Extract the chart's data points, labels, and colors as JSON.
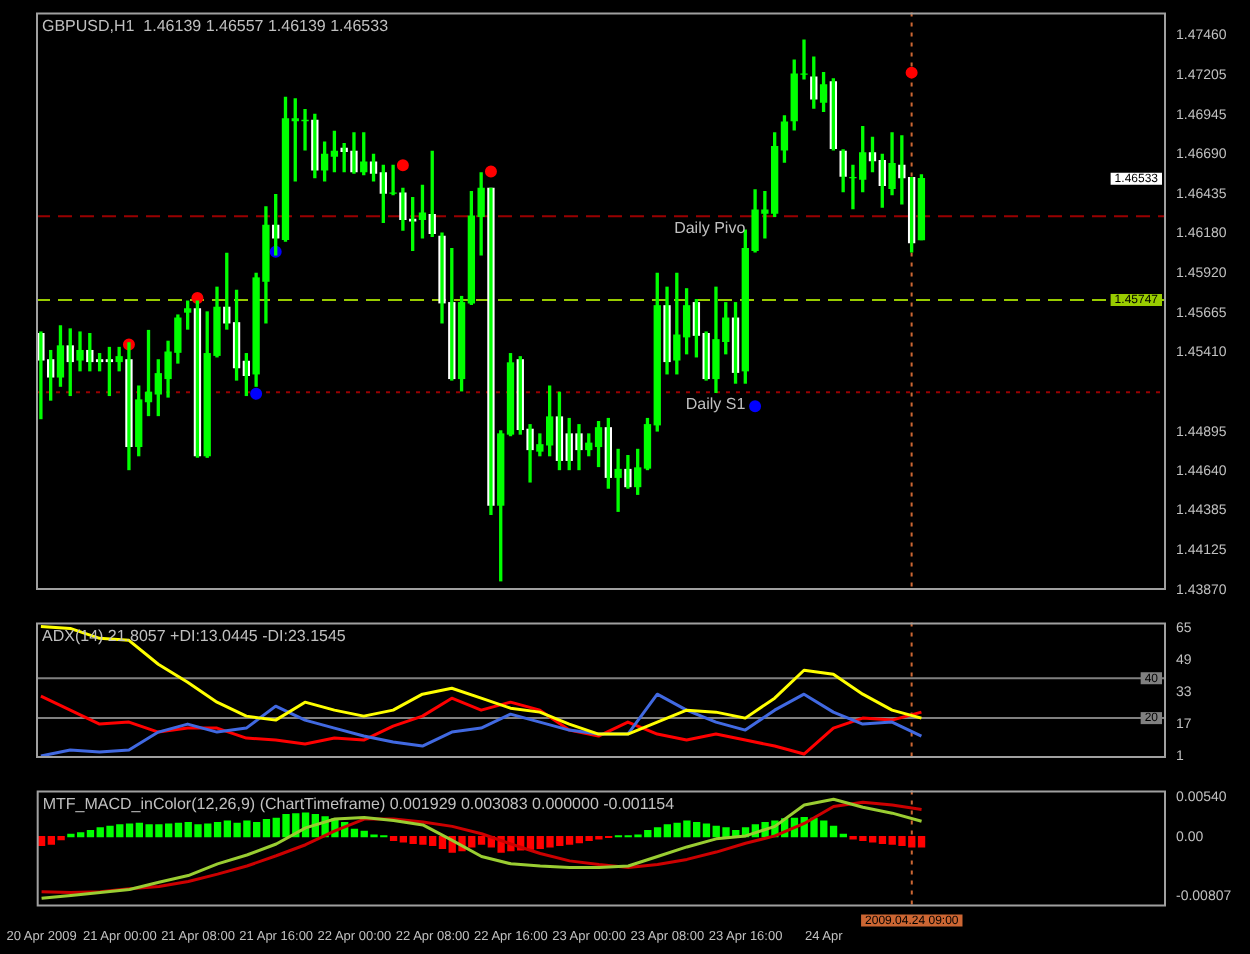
{
  "chart_data": [
    {
      "type": "candlestick",
      "title": "GBPUSD,H1  1.46139 1.46557 1.46139 1.46533",
      "color": "#00ff00",
      "marker": "circle",
      "tick_labels": "y",
      "colors": [
        "#ffffff",
        "#ffffff",
        "#00ff00",
        "#ffffff",
        "#00ff00",
        "#ffffff",
        "#ffffff",
        "#ffffff",
        "#00ff00",
        "#ffffff",
        "#00ff00",
        "#00ff00",
        "#00ff00",
        "#00ff00",
        "#00ff00",
        "#00ff00",
        "#ffffff",
        "#00ff00",
        "#00ff00",
        "#ffffff",
        "#ffffff",
        "#ffffff",
        "#00ff00",
        "#00ff00",
        "#ffffff",
        "#00ff00",
        "#00ff00",
        "#00ff00",
        "#ffffff",
        "#00ff00",
        "#00ff00",
        "#ffffff",
        "#ffffff",
        "#00ff00",
        "#ffffff",
        "#ffffff",
        "#00ff00",
        "#ffffff",
        "#ffffff",
        "#00ff00",
        "#ffffff",
        "#ffffff",
        "#ffffff",
        "#00ff00",
        "#00ff00",
        "#00ff00",
        "#ffffff",
        "#00ff00",
        "#00ff00",
        "#ffffff",
        "#ffffff",
        "#00ff00",
        "#00ff00",
        "#ffffff",
        "#ffffff",
        "#ffffff",
        "#00ff00",
        "#00ff00",
        "#ffffff",
        "#00ff00",
        "#ffffff",
        "#00ff00",
        "#00ff00",
        "#00ff00",
        "#ffffff",
        "#00ff00",
        "#00ff00",
        "#ffffff",
        "#ffffff",
        "#00ff00",
        "#00ff00",
        "#ffffff",
        "#00ff00",
        "#00ff00",
        "#00ff00",
        "#00ff00",
        "#00ff00",
        "#00ff00",
        "#00ff00",
        "#ffffff",
        "#00ff00",
        "#ffffff",
        "#ffffff",
        "#00ff00",
        "#00ff00",
        "#ffffff",
        "#ffffff",
        "#00ff00",
        "#ffffff",
        "#ffffff",
        "#00ff00"
      ],
      "xlim": [
        "2009-04-20T15:30",
        "2009-04-25T11:00"
      ],
      "ylim": [
        1.4387,
        1.4761
      ],
      "yticks": [
        {
          "value": 1.4746,
          "label": "1.47460"
        },
        {
          "value": 1.47205,
          "label": "1.47205"
        },
        {
          "value": 1.46945,
          "label": "1.46945"
        },
        {
          "value": 1.4669,
          "label": "1.46690"
        },
        {
          "value": 1.46435,
          "label": "1.46435"
        },
        {
          "value": 1.4618,
          "label": "1.46180"
        },
        {
          "value": 1.4592,
          "label": "1.45920"
        },
        {
          "value": 1.45665,
          "label": "1.45665"
        },
        {
          "value": 1.4541,
          "label": "1.45410"
        },
        {
          "value": 1.44895,
          "label": "1.44895"
        },
        {
          "value": 1.4464,
          "label": "1.44640"
        },
        {
          "value": 1.44385,
          "label": "1.44385"
        },
        {
          "value": 1.44125,
          "label": "1.44125"
        },
        {
          "value": 1.4387,
          "label": "1.43870"
        }
      ],
      "x": [
        "2009-04-20T16:00",
        "2009-04-20T17:00",
        "2009-04-20T18:00",
        "2009-04-20T19:00",
        "2009-04-20T20:00",
        "2009-04-20T21:00",
        "2009-04-20T22:00",
        "2009-04-20T23:00",
        "2009-04-21T00:00",
        "2009-04-21T01:00",
        "2009-04-21T02:00",
        "2009-04-21T03:00",
        "2009-04-21T04:00",
        "2009-04-21T05:00",
        "2009-04-21T06:00",
        "2009-04-21T07:00",
        "2009-04-21T08:00",
        "2009-04-21T09:00",
        "2009-04-21T10:00",
        "2009-04-21T11:00",
        "2009-04-21T12:00",
        "2009-04-21T13:00",
        "2009-04-21T14:00",
        "2009-04-21T15:00",
        "2009-04-21T16:00",
        "2009-04-21T17:00",
        "2009-04-21T18:00",
        "2009-04-21T19:00",
        "2009-04-21T20:00",
        "2009-04-21T21:00",
        "2009-04-21T22:00",
        "2009-04-21T23:00",
        "2009-04-22T00:00",
        "2009-04-22T01:00",
        "2009-04-22T02:00",
        "2009-04-22T03:00",
        "2009-04-22T04:00",
        "2009-04-22T05:00",
        "2009-04-22T06:00",
        "2009-04-22T07:00",
        "2009-04-22T08:00",
        "2009-04-22T09:00",
        "2009-04-22T10:00",
        "2009-04-22T11:00",
        "2009-04-22T12:00",
        "2009-04-22T13:00",
        "2009-04-22T14:00",
        "2009-04-22T15:00",
        "2009-04-22T16:00",
        "2009-04-22T17:00",
        "2009-04-22T18:00",
        "2009-04-22T19:00",
        "2009-04-22T20:00",
        "2009-04-22T21:00",
        "2009-04-22T22:00",
        "2009-04-22T23:00",
        "2009-04-23T00:00",
        "2009-04-23T01:00",
        "2009-04-23T02:00",
        "2009-04-23T03:00",
        "2009-04-23T04:00",
        "2009-04-23T05:00",
        "2009-04-23T06:00",
        "2009-04-23T07:00",
        "2009-04-23T08:00",
        "2009-04-23T09:00",
        "2009-04-23T10:00",
        "2009-04-23T11:00",
        "2009-04-23T12:00",
        "2009-04-23T13:00",
        "2009-04-23T14:00",
        "2009-04-23T15:00",
        "2009-04-23T16:00",
        "2009-04-23T17:00",
        "2009-04-23T18:00",
        "2009-04-23T19:00",
        "2009-04-23T20:00",
        "2009-04-23T21:00",
        "2009-04-23T22:00",
        "2009-04-23T23:00",
        "2009-04-24T00:00",
        "2009-04-24T01:00",
        "2009-04-24T02:00",
        "2009-04-24T03:00",
        "2009-04-24T04:00",
        "2009-04-24T05:00",
        "2009-04-24T06:00",
        "2009-04-24T07:00",
        "2009-04-24T08:00",
        "2009-04-24T09:00",
        "2009-04-24T10:00"
      ],
      "ohlc": [
        [
          1.4553,
          1.4554,
          1.4498,
          1.4536
        ],
        [
          1.4536,
          1.4542,
          1.451,
          1.4525
        ],
        [
          1.4525,
          1.4558,
          1.4519,
          1.4545
        ],
        [
          1.4545,
          1.4556,
          1.4513,
          1.4535
        ],
        [
          1.4536,
          1.4554,
          1.4529,
          1.4542
        ],
        [
          1.4542,
          1.4553,
          1.4529,
          1.4535
        ],
        [
          1.4536,
          1.454,
          1.4529,
          1.4535
        ],
        [
          1.4536,
          1.4544,
          1.4513,
          1.4535
        ],
        [
          1.4535,
          1.4544,
          1.4529,
          1.4538
        ],
        [
          1.4536,
          1.4547,
          1.4465,
          1.448
        ],
        [
          1.448,
          1.4519,
          1.4474,
          1.451
        ],
        [
          1.4509,
          1.4555,
          1.45,
          1.4515
        ],
        [
          1.4514,
          1.4536,
          1.45,
          1.4527
        ],
        [
          1.4524,
          1.4548,
          1.4512,
          1.4541
        ],
        [
          1.4541,
          1.4565,
          1.4534,
          1.4563
        ],
        [
          1.4567,
          1.4574,
          1.4556,
          1.4569
        ],
        [
          1.4569,
          1.4574,
          1.4473,
          1.4474
        ],
        [
          1.4474,
          1.4567,
          1.4473,
          1.454
        ],
        [
          1.4539,
          1.4583,
          1.4538,
          1.457
        ],
        [
          1.457,
          1.4605,
          1.4556,
          1.456
        ],
        [
          1.456,
          1.4581,
          1.4523,
          1.4531
        ],
        [
          1.4535,
          1.454,
          1.4513,
          1.4526
        ],
        [
          1.4527,
          1.4592,
          1.4519,
          1.4589
        ],
        [
          1.4587,
          1.4635,
          1.456,
          1.4623
        ],
        [
          1.4623,
          1.4643,
          1.4604,
          1.4615
        ],
        [
          1.4614,
          1.4706,
          1.4613,
          1.4692
        ],
        [
          1.4691,
          1.4705,
          1.4652,
          1.4692
        ],
        [
          1.4691,
          1.4698,
          1.4672,
          1.4691
        ],
        [
          1.4691,
          1.4695,
          1.4654,
          1.4659
        ],
        [
          1.4659,
          1.4677,
          1.4652,
          1.4669
        ],
        [
          1.4668,
          1.4684,
          1.4658,
          1.4671
        ],
        [
          1.4673,
          1.4676,
          1.4658,
          1.4671
        ],
        [
          1.4671,
          1.4683,
          1.4657,
          1.4658
        ],
        [
          1.4658,
          1.4683,
          1.4656,
          1.4664
        ],
        [
          1.4664,
          1.4669,
          1.4652,
          1.4657
        ],
        [
          1.4657,
          1.4662,
          1.4625,
          1.4644
        ],
        [
          1.4644,
          1.4662,
          1.4643,
          1.4644
        ],
        [
          1.4644,
          1.4647,
          1.462,
          1.4627
        ],
        [
          1.4627,
          1.4641,
          1.4607,
          1.4626
        ],
        [
          1.4627,
          1.4649,
          1.4615,
          1.4631
        ],
        [
          1.463,
          1.4671,
          1.4616,
          1.4618
        ],
        [
          1.4616,
          1.4618,
          1.456,
          1.4573
        ],
        [
          1.4573,
          1.4608,
          1.4523,
          1.4524
        ],
        [
          1.4524,
          1.4577,
          1.4516,
          1.4573
        ],
        [
          1.4573,
          1.4645,
          1.4572,
          1.4629
        ],
        [
          1.4629,
          1.4657,
          1.4604,
          1.4647
        ],
        [
          1.4647,
          1.4647,
          1.4436,
          1.4442
        ],
        [
          1.4442,
          1.449,
          1.4393,
          1.4488
        ],
        [
          1.4488,
          1.454,
          1.4487,
          1.4534
        ],
        [
          1.4536,
          1.4538,
          1.4488,
          1.4491
        ],
        [
          1.4491,
          1.4494,
          1.4457,
          1.4478
        ],
        [
          1.4477,
          1.4488,
          1.4474,
          1.4481
        ],
        [
          1.4481,
          1.4519,
          1.4474,
          1.4499
        ],
        [
          1.4499,
          1.4515,
          1.4465,
          1.4471
        ],
        [
          1.4488,
          1.4498,
          1.4465,
          1.4471
        ],
        [
          1.4488,
          1.4494,
          1.4465,
          1.4478
        ],
        [
          1.4478,
          1.4488,
          1.4474,
          1.4482
        ],
        [
          1.448,
          1.4496,
          1.4467,
          1.4492
        ],
        [
          1.4492,
          1.4498,
          1.4453,
          1.446
        ],
        [
          1.446,
          1.4478,
          1.4438,
          1.4465
        ],
        [
          1.4465,
          1.4474,
          1.4453,
          1.4454
        ],
        [
          1.4454,
          1.4478,
          1.4449,
          1.4466
        ],
        [
          1.4466,
          1.4498,
          1.4465,
          1.4494
        ],
        [
          1.4494,
          1.4592,
          1.449,
          1.4571
        ],
        [
          1.4571,
          1.4583,
          1.4527,
          1.4535
        ],
        [
          1.4536,
          1.4592,
          1.4527,
          1.4552
        ],
        [
          1.4551,
          1.4582,
          1.454,
          1.4571
        ],
        [
          1.4573,
          1.4575,
          1.4538,
          1.4552
        ],
        [
          1.4553,
          1.4554,
          1.4523,
          1.4524
        ],
        [
          1.4524,
          1.4583,
          1.4515,
          1.4549
        ],
        [
          1.4548,
          1.4573,
          1.454,
          1.4563
        ],
        [
          1.4563,
          1.4573,
          1.4521,
          1.4528
        ],
        [
          1.4529,
          1.462,
          1.4521,
          1.4608
        ],
        [
          1.4607,
          1.4646,
          1.4606,
          1.4633
        ],
        [
          1.4631,
          1.4645,
          1.4615,
          1.4633
        ],
        [
          1.4631,
          1.4683,
          1.4629,
          1.4674
        ],
        [
          1.4672,
          1.4694,
          1.4664,
          1.469
        ],
        [
          1.4691,
          1.473,
          1.4685,
          1.4721
        ],
        [
          1.4721,
          1.4743,
          1.4718,
          1.4721
        ],
        [
          1.4719,
          1.4732,
          1.4699,
          1.4705
        ],
        [
          1.4703,
          1.4722,
          1.4697,
          1.4714
        ],
        [
          1.4716,
          1.4718,
          1.4672,
          1.4673
        ],
        [
          1.4671,
          1.4672,
          1.4645,
          1.4655
        ],
        [
          1.4654,
          1.4662,
          1.4634,
          1.4654
        ],
        [
          1.4653,
          1.4687,
          1.4645,
          1.467
        ],
        [
          1.467,
          1.468,
          1.4658,
          1.4665
        ],
        [
          1.4665,
          1.4669,
          1.4635,
          1.4649
        ],
        [
          1.4647,
          1.4683,
          1.4643,
          1.4663
        ],
        [
          1.4662,
          1.4681,
          1.4637,
          1.4654
        ],
        [
          1.4654,
          1.4654,
          1.4606,
          1.4612
        ],
        [
          1.46139,
          1.46557,
          1.46139,
          1.46533
        ]
      ],
      "series": [
        {
          "type": "scatter",
          "color": "#ff0000",
          "x": [
            "2009-04-21T01:00",
            "2009-04-21T08:00",
            "2009-04-22T05:00",
            "2009-04-22T14:00",
            "2009-04-24T09:00"
          ],
          "values": [
            1.4546,
            1.4576,
            1.4662,
            1.4658,
            1.4722
          ]
        },
        {
          "type": "scatter",
          "color": "#0000ff",
          "x": [
            "2009-04-21T14:00",
            "2009-04-21T16:00",
            "2009-04-23T17:00"
          ],
          "values": [
            1.4514,
            1.4606,
            1.4506
          ]
        }
      ],
      "ref_lines": [
        {
          "axis": "y",
          "value": 1.4629,
          "color": "#990000",
          "line_style": "dashed"
        },
        {
          "axis": "y",
          "value": 1.4515,
          "color": "#990000",
          "line_style": "dotted"
        },
        {
          "axis": "y",
          "value": 1.45747,
          "label": "1.45747",
          "color": "#99cc00",
          "line_style": "dashed"
        },
        {
          "axis": "x",
          "value": "2009-04-24T09:00",
          "color": "#cc6633",
          "line_style": "dotted"
        }
      ],
      "annotations": [
        {
          "text": "Daily Pivo",
          "x": "2009-04-23T16:00",
          "y": 1.4629
        },
        {
          "text": "Daily S1",
          "x": "2009-04-23T16:00",
          "y": 1.4515
        },
        "1.46533"
      ]
    },
    {
      "type": "line",
      "title": "ADX(14) 21.8057 +DI:13.0445 -DI:23.1545",
      "tick_labels": "y",
      "xlim": [
        "2009-04-20T15:30",
        "2009-04-25T11:00"
      ],
      "ylim": [
        0,
        68
      ],
      "yticks": [
        65,
        49,
        33,
        17,
        1
      ],
      "x": [
        "2009-04-20T16:00",
        "2009-04-20T19:00",
        "2009-04-20T22:00",
        "2009-04-21T01:00",
        "2009-04-21T04:00",
        "2009-04-21T07:00",
        "2009-04-21T10:00",
        "2009-04-21T13:00",
        "2009-04-21T16:00",
        "2009-04-21T19:00",
        "2009-04-21T22:00",
        "2009-04-22T01:00",
        "2009-04-22T04:00",
        "2009-04-22T07:00",
        "2009-04-22T10:00",
        "2009-04-22T13:00",
        "2009-04-22T16:00",
        "2009-04-22T19:00",
        "2009-04-22T22:00",
        "2009-04-23T01:00",
        "2009-04-23T04:00",
        "2009-04-23T07:00",
        "2009-04-23T10:00",
        "2009-04-23T13:00",
        "2009-04-23T16:00",
        "2009-04-23T19:00",
        "2009-04-23T22:00",
        "2009-04-24T01:00",
        "2009-04-24T04:00",
        "2009-04-24T07:00",
        "2009-04-24T10:00"
      ],
      "series": [
        {
          "color": "#ffff00",
          "values": [
            66,
            65,
            60,
            59,
            47,
            38,
            28,
            21,
            19,
            28,
            24,
            21,
            24,
            32,
            35,
            30,
            25,
            23,
            17,
            12,
            12,
            18,
            24,
            23,
            20,
            30,
            44,
            42,
            32,
            24,
            20
          ]
        },
        {
          "color": "#4169e1",
          "values": [
            1,
            4,
            3,
            4,
            13,
            17,
            13,
            15,
            26,
            19,
            15,
            11,
            8,
            6,
            13,
            15,
            22,
            18,
            14,
            12,
            12,
            32,
            24,
            18,
            14,
            24,
            32,
            23,
            17,
            18,
            11
          ]
        },
        {
          "color": "#ff0000",
          "values": [
            31,
            24,
            17,
            18,
            13,
            15,
            15,
            10,
            9,
            7,
            10,
            9,
            16,
            21,
            30,
            24,
            28,
            24,
            14,
            11,
            18,
            12,
            9,
            12,
            9,
            6,
            2,
            15,
            20,
            19,
            23
          ]
        }
      ],
      "ref_lines": [
        {
          "axis": "y",
          "value": 40,
          "label": "40",
          "color": "#808080"
        },
        {
          "axis": "y",
          "value": 20,
          "label": "20",
          "color": "#808080"
        },
        {
          "axis": "x",
          "value": "2009-04-24T09:00",
          "color": "#cc6633",
          "line_style": "dotted"
        }
      ]
    },
    {
      "type": "bar",
      "title": "MTF_MACD_inColor(12,26,9) (ChartTimeframe) 0.001929 0.003083 0.000000 -0.001154",
      "xlim": [
        "2009-04-20T15:30",
        "2009-04-25T11:00"
      ],
      "xticks": [
        {
          "value": "2009-04-20T16:00",
          "label": "20 Apr 2009"
        },
        {
          "value": "2009-04-21T00:00",
          "label": "21 Apr 00:00"
        },
        {
          "value": "2009-04-21T08:00",
          "label": "21 Apr 08:00"
        },
        {
          "value": "2009-04-21T16:00",
          "label": "21 Apr 16:00"
        },
        {
          "value": "2009-04-22T00:00",
          "label": "22 Apr 00:00"
        },
        {
          "value": "2009-04-22T08:00",
          "label": "22 Apr 08:00"
        },
        {
          "value": "2009-04-22T16:00",
          "label": "22 Apr 16:00"
        },
        {
          "value": "2009-04-23T00:00",
          "label": "23 Apr 00:00"
        },
        {
          "value": "2009-04-23T08:00",
          "label": "23 Apr 08:00"
        },
        {
          "value": "2009-04-23T16:00",
          "label": "23 Apr 16:00"
        },
        {
          "value": "2009-04-24T00:00",
          "label": "24 Apr"
        }
      ],
      "ylim": [
        -0.0095,
        0.0063
      ],
      "yticks": [
        {
          "value": 0.0054,
          "label": "0.00540"
        },
        {
          "value": 0,
          "label": "0.00"
        },
        {
          "value": -0.00807,
          "label": "-0.00807"
        }
      ],
      "x": [
        "2009-04-20T16:00",
        "2009-04-20T17:00",
        "2009-04-20T18:00",
        "2009-04-20T19:00",
        "2009-04-20T20:00",
        "2009-04-20T21:00",
        "2009-04-20T22:00",
        "2009-04-20T23:00",
        "2009-04-21T00:00",
        "2009-04-21T01:00",
        "2009-04-21T02:00",
        "2009-04-21T03:00",
        "2009-04-21T04:00",
        "2009-04-21T05:00",
        "2009-04-21T06:00",
        "2009-04-21T07:00",
        "2009-04-21T08:00",
        "2009-04-21T09:00",
        "2009-04-21T10:00",
        "2009-04-21T11:00",
        "2009-04-21T12:00",
        "2009-04-21T13:00",
        "2009-04-21T14:00",
        "2009-04-21T15:00",
        "2009-04-21T16:00",
        "2009-04-21T17:00",
        "2009-04-21T18:00",
        "2009-04-21T19:00",
        "2009-04-21T20:00",
        "2009-04-21T21:00",
        "2009-04-21T22:00",
        "2009-04-21T23:00",
        "2009-04-22T00:00",
        "2009-04-22T01:00",
        "2009-04-22T02:00",
        "2009-04-22T03:00",
        "2009-04-22T04:00",
        "2009-04-22T05:00",
        "2009-04-22T06:00",
        "2009-04-22T07:00",
        "2009-04-22T08:00",
        "2009-04-22T09:00",
        "2009-04-22T10:00",
        "2009-04-22T11:00",
        "2009-04-22T12:00",
        "2009-04-22T13:00",
        "2009-04-22T14:00",
        "2009-04-22T15:00",
        "2009-04-22T16:00",
        "2009-04-22T17:00",
        "2009-04-22T18:00",
        "2009-04-22T19:00",
        "2009-04-22T20:00",
        "2009-04-22T21:00",
        "2009-04-22T22:00",
        "2009-04-22T23:00",
        "2009-04-23T00:00",
        "2009-04-23T01:00",
        "2009-04-23T02:00",
        "2009-04-23T03:00",
        "2009-04-23T04:00",
        "2009-04-23T05:00",
        "2009-04-23T06:00",
        "2009-04-23T07:00",
        "2009-04-23T08:00",
        "2009-04-23T09:00",
        "2009-04-23T10:00",
        "2009-04-23T11:00",
        "2009-04-23T12:00",
        "2009-04-23T13:00",
        "2009-04-23T14:00",
        "2009-04-23T15:00",
        "2009-04-23T16:00",
        "2009-04-23T17:00",
        "2009-04-23T18:00",
        "2009-04-23T19:00",
        "2009-04-23T20:00",
        "2009-04-23T21:00",
        "2009-04-23T22:00",
        "2009-04-23T23:00",
        "2009-04-24T00:00",
        "2009-04-24T01:00",
        "2009-04-24T02:00",
        "2009-04-24T03:00",
        "2009-04-24T04:00",
        "2009-04-24T05:00",
        "2009-04-24T06:00",
        "2009-04-24T07:00",
        "2009-04-24T08:00",
        "2009-04-24T09:00",
        "2009-04-24T10:00"
      ],
      "series": [
        {
          "values": [
            -0.0012,
            -0.001,
            -0.0004,
            0.0003,
            0.0005,
            0.0008,
            0.0012,
            0.0014,
            0.0016,
            0.0017,
            0.0018,
            0.0016,
            0.0016,
            0.0017,
            0.0018,
            0.0019,
            0.0016,
            0.0017,
            0.0019,
            0.0021,
            0.0018,
            0.0021,
            0.0019,
            0.0023,
            0.0025,
            0.003,
            0.0031,
            0.0032,
            0.003,
            0.0027,
            0.0024,
            0.0019,
            0.001,
            0.0007,
            0.0002,
            0.0001,
            -0.0005,
            -0.0007,
            -0.0009,
            -0.001,
            -0.0012,
            -0.0016,
            -0.0021,
            -0.0019,
            -0.0014,
            -0.001,
            -0.0014,
            -0.0021,
            -0.0019,
            -0.0018,
            -0.0017,
            -0.0016,
            -0.0014,
            -0.0012,
            -0.001,
            -0.0008,
            -0.0005,
            -0.0003,
            -0.0001,
            0.0001,
            0.0001,
            0.0002,
            0.0008,
            0.0012,
            0.0016,
            0.0018,
            0.0021,
            0.0019,
            0.0017,
            0.0014,
            0.0012,
            0.0008,
            0.0012,
            0.0016,
            0.0019,
            0.0021,
            0.0024,
            0.0025,
            0.0026,
            0.0025,
            0.0021,
            0.0014,
            0.0003,
            -0.0003,
            -0.0005,
            -0.0007,
            -0.0009,
            -0.001,
            -0.0012,
            -0.0014,
            -0.0014
          ],
          "colors": [
            "#ff0000",
            "#ff0000",
            "#ff0000",
            "#00ff00",
            "#00ff00",
            "#00ff00",
            "#00ff00",
            "#00ff00",
            "#00ff00",
            "#00ff00",
            "#00ff00",
            "#00ff00",
            "#00ff00",
            "#00ff00",
            "#00ff00",
            "#00ff00",
            "#00ff00",
            "#00ff00",
            "#00ff00",
            "#00ff00",
            "#00ff00",
            "#00ff00",
            "#00ff00",
            "#00ff00",
            "#00ff00",
            "#00ff00",
            "#00ff00",
            "#00ff00",
            "#00ff00",
            "#00ff00",
            "#00ff00",
            "#00ff00",
            "#00ff00",
            "#00ff00",
            "#00ff00",
            "#00ff00",
            "#ff0000",
            "#ff0000",
            "#ff0000",
            "#ff0000",
            "#ff0000",
            "#ff0000",
            "#ff0000",
            "#ff0000",
            "#ff0000",
            "#ff0000",
            "#ff0000",
            "#ff0000",
            "#ff0000",
            "#ff0000",
            "#ff0000",
            "#ff0000",
            "#ff0000",
            "#ff0000",
            "#ff0000",
            "#ff0000",
            "#ff0000",
            "#ff0000",
            "#ff0000",
            "#00ff00",
            "#00ff00",
            "#00ff00",
            "#00ff00",
            "#00ff00",
            "#00ff00",
            "#00ff00",
            "#00ff00",
            "#00ff00",
            "#00ff00",
            "#00ff00",
            "#00ff00",
            "#00ff00",
            "#00ff00",
            "#00ff00",
            "#00ff00",
            "#00ff00",
            "#00ff00",
            "#00ff00",
            "#00ff00",
            "#00ff00",
            "#00ff00",
            "#00ff00",
            "#00ff00",
            "#ff0000",
            "#ff0000",
            "#ff0000",
            "#ff0000",
            "#ff0000",
            "#ff0000",
            "#ff0000",
            "#ff0000"
          ]
        },
        {
          "type": "line",
          "color": "#9acd32",
          "x": [
            "2009-04-20T16:00",
            "2009-04-20T19:00",
            "2009-04-20T22:00",
            "2009-04-21T01:00",
            "2009-04-21T04:00",
            "2009-04-21T07:00",
            "2009-04-21T10:00",
            "2009-04-21T13:00",
            "2009-04-21T16:00",
            "2009-04-21T19:00",
            "2009-04-21T22:00",
            "2009-04-22T01:00",
            "2009-04-22T04:00",
            "2009-04-22T07:00",
            "2009-04-22T10:00",
            "2009-04-22T13:00",
            "2009-04-22T16:00",
            "2009-04-22T19:00",
            "2009-04-22T22:00",
            "2009-04-23T01:00",
            "2009-04-23T04:00",
            "2009-04-23T07:00",
            "2009-04-23T10:00",
            "2009-04-23T13:00",
            "2009-04-23T16:00",
            "2009-04-23T19:00",
            "2009-04-23T22:00",
            "2009-04-24T01:00",
            "2009-04-24T04:00",
            "2009-04-24T07:00",
            "2009-04-24T10:00"
          ],
          "values": [
            -0.0084,
            -0.008,
            -0.0076,
            -0.0072,
            -0.0062,
            -0.0053,
            -0.0037,
            -0.0025,
            -0.001,
            0.0012,
            0.0024,
            0.0026,
            0.0022,
            0.0016,
            -0.0005,
            -0.0027,
            -0.0037,
            -0.004,
            -0.0042,
            -0.0042,
            -0.004,
            -0.0027,
            -0.0014,
            -0.0003,
            0.0001,
            0.0014,
            0.0043,
            0.0051,
            0.004,
            0.0032,
            0.0021
          ]
        },
        {
          "type": "line",
          "color": "#cc0000",
          "x": [
            "2009-04-20T16:00",
            "2009-04-20T19:00",
            "2009-04-20T22:00",
            "2009-04-21T01:00",
            "2009-04-21T04:00",
            "2009-04-21T07:00",
            "2009-04-21T10:00",
            "2009-04-21T13:00",
            "2009-04-21T16:00",
            "2009-04-21T19:00",
            "2009-04-21T22:00",
            "2009-04-22T01:00",
            "2009-04-22T04:00",
            "2009-04-22T07:00",
            "2009-04-22T10:00",
            "2009-04-22T13:00",
            "2009-04-22T16:00",
            "2009-04-22T19:00",
            "2009-04-22T22:00",
            "2009-04-23T01:00",
            "2009-04-23T04:00",
            "2009-04-23T07:00",
            "2009-04-23T10:00",
            "2009-04-23T13:00",
            "2009-04-23T16:00",
            "2009-04-23T19:00",
            "2009-04-23T22:00",
            "2009-04-24T01:00",
            "2009-04-24T04:00",
            "2009-04-24T07:00",
            "2009-04-24T10:00"
          ],
          "values": [
            -0.0075,
            -0.0076,
            -0.0075,
            -0.0071,
            -0.0068,
            -0.0061,
            -0.0051,
            -0.004,
            -0.0026,
            -0.0011,
            0.0008,
            0.0024,
            0.0024,
            0.002,
            0.0014,
            0.0004,
            -0.001,
            -0.0023,
            -0.0033,
            -0.0038,
            -0.0042,
            -0.0038,
            -0.0031,
            -0.0021,
            -0.0009,
            0.0001,
            0.0018,
            0.0041,
            0.0047,
            0.0043,
            0.0037
          ]
        }
      ],
      "ref_lines": [
        {
          "axis": "x",
          "value": "2009-04-24T09:00",
          "label": "2009.04.24 09:00",
          "color": "#cc6633",
          "line_style": "dotted"
        }
      ]
    }
  ]
}
